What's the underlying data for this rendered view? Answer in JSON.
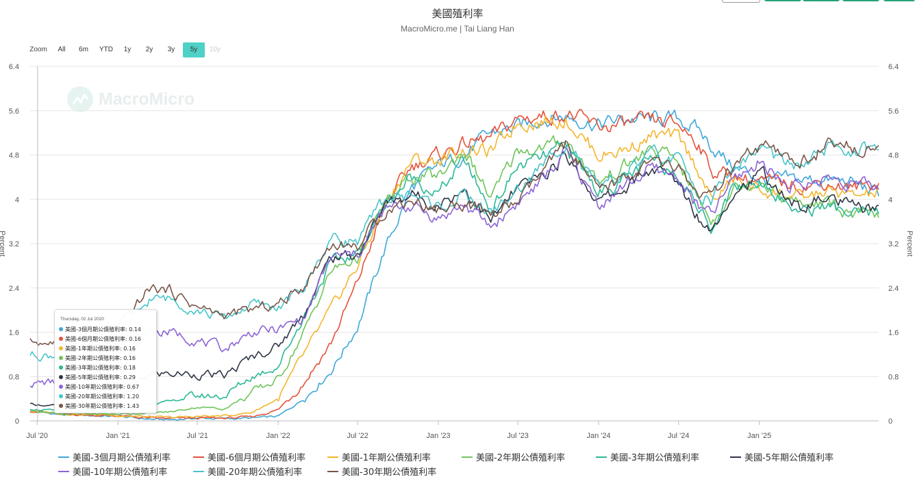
{
  "title": "美國殖利率",
  "subtitle": "MacroMicro.me | Tai Liang Han",
  "watermark": "MacroMicro",
  "range_selector": {
    "zoom_label": "Zoom",
    "buttons": [
      "All",
      "6m",
      "YTD",
      "1y",
      "2y",
      "3y",
      "5y",
      "10y"
    ],
    "active": "5y",
    "disabled": [
      "10y"
    ]
  },
  "colors": {
    "3m": "#3ea7d8",
    "6m": "#e4513a",
    "1y": "#f3b52c",
    "2y": "#6ec45a",
    "3y": "#2bb895",
    "5y": "#2f3546",
    "10y": "#8b63d6",
    "20y": "#48c4c9",
    "30y": "#7a5548"
  },
  "tooltip": {
    "date": "Thursday, 02 Jul 2020",
    "rows": [
      {
        "key": "3m",
        "text": "美國-3個月期公債殖利率: 0.14"
      },
      {
        "key": "6m",
        "text": "美國-6個月期公債殖利率: 0.16"
      },
      {
        "key": "1y",
        "text": "美國-1年期公債殖利率: 0.16"
      },
      {
        "key": "2y",
        "text": "美國-2年期公債殖利率: 0.16"
      },
      {
        "key": "3y",
        "text": "美國-3年期公債殖利率: 0.18"
      },
      {
        "key": "5y",
        "text": "美國-5年期公債殖利率: 0.29"
      },
      {
        "key": "10y",
        "text": "美國-10年期公債殖利率: 0.67"
      },
      {
        "key": "20y",
        "text": "美國-20年期公債殖利率: 1.20"
      },
      {
        "key": "30y",
        "text": "美國-30年期公債殖利率: 1.43"
      }
    ]
  },
  "chart_data": {
    "type": "line",
    "title": "美國殖利率",
    "subtitle": "MacroMicro.me | Tai Liang Han",
    "ylabel_left": "Percent",
    "ylabel_right": "Percent",
    "ylim": [
      0,
      6.4
    ],
    "yticks": [
      "0",
      "0.8",
      "1.6",
      "2.4",
      "3.2",
      "4",
      "4.8",
      "5.6",
      "6.4"
    ],
    "xlim": [
      "2020-06-15",
      "2025-09-30"
    ],
    "xticks": [
      {
        "date": "2020-07-01",
        "label": "Jul '20"
      },
      {
        "date": "2021-01-01",
        "label": "Jan '21"
      },
      {
        "date": "2021-07-01",
        "label": "Jul '21"
      },
      {
        "date": "2022-01-01",
        "label": "Jan '22"
      },
      {
        "date": "2022-07-01",
        "label": "Jul '22"
      },
      {
        "date": "2023-01-01",
        "label": "Jan '23"
      },
      {
        "date": "2023-07-01",
        "label": "Jul '23"
      },
      {
        "date": "2024-01-01",
        "label": "Jan '24"
      },
      {
        "date": "2024-07-01",
        "label": "Jul '24"
      },
      {
        "date": "2025-01-01",
        "label": "Jan '25"
      }
    ],
    "crosshair_date": "2020-07-02",
    "grid": true,
    "legend_position": "bottom",
    "x": [
      "2020-06-15",
      "2020-09-01",
      "2021-01-01",
      "2021-03-15",
      "2021-05-01",
      "2021-07-01",
      "2021-09-01",
      "2021-11-01",
      "2022-01-01",
      "2022-03-01",
      "2022-05-01",
      "2022-07-01",
      "2022-09-01",
      "2022-11-01",
      "2023-01-01",
      "2023-03-01",
      "2023-05-01",
      "2023-07-01",
      "2023-08-15",
      "2023-10-20",
      "2024-01-01",
      "2024-03-01",
      "2024-05-01",
      "2024-07-01",
      "2024-08-15",
      "2024-09-15",
      "2024-11-01",
      "2025-01-10",
      "2025-03-01",
      "2025-04-10",
      "2025-06-01",
      "2025-08-01",
      "2025-09-30"
    ],
    "series": [
      {
        "key": "3m",
        "name": "美國-3個月期公債殖利率",
        "values": [
          0.17,
          0.11,
          0.08,
          0.03,
          0.02,
          0.05,
          0.04,
          0.05,
          0.08,
          0.4,
          0.9,
          1.7,
          3.1,
          4.2,
          4.6,
          4.8,
          5.2,
          5.3,
          5.45,
          5.5,
          5.35,
          5.45,
          5.45,
          5.45,
          5.25,
          4.95,
          4.6,
          4.35,
          4.35,
          4.35,
          4.35,
          4.3,
          4.1
        ]
      },
      {
        "key": "6m",
        "name": "美國-6個月期公債殖利率",
        "values": [
          0.18,
          0.12,
          0.09,
          0.05,
          0.04,
          0.05,
          0.05,
          0.07,
          0.2,
          0.7,
          1.4,
          2.5,
          3.9,
          4.6,
          4.8,
          5.0,
          5.1,
          5.45,
          5.5,
          5.55,
          5.3,
          5.35,
          5.4,
          5.35,
          5.05,
          4.5,
          4.45,
          4.3,
          4.3,
          4.25,
          4.3,
          4.2,
          4.3
        ]
      },
      {
        "key": "1y",
        "name": "美國-1年期公債殖利率",
        "values": [
          0.18,
          0.13,
          0.1,
          0.07,
          0.06,
          0.08,
          0.09,
          0.15,
          0.4,
          1.2,
          2.0,
          2.8,
          3.9,
          4.7,
          4.7,
          4.9,
          4.85,
          5.4,
          5.4,
          5.45,
          4.8,
          4.9,
          5.15,
          5.1,
          4.55,
          3.95,
          4.35,
          4.15,
          4.1,
          4.0,
          4.15,
          4.05,
          4.1
        ]
      },
      {
        "key": "2y",
        "name": "美國-2年期公債殖利率",
        "values": [
          0.19,
          0.13,
          0.12,
          0.15,
          0.16,
          0.25,
          0.22,
          0.5,
          0.75,
          1.6,
          2.7,
          2.95,
          3.9,
          4.4,
          4.4,
          4.9,
          4.0,
          4.9,
          4.9,
          5.05,
          4.3,
          4.6,
          4.9,
          4.7,
          4.0,
          3.6,
          4.2,
          4.35,
          4.0,
          3.9,
          3.95,
          3.7,
          3.7
        ]
      },
      {
        "key": "3y",
        "name": "美國-3年期公債殖利率",
        "values": [
          0.22,
          0.16,
          0.17,
          0.32,
          0.35,
          0.45,
          0.45,
          0.8,
          1.0,
          1.9,
          2.85,
          3.0,
          3.9,
          4.4,
          4.1,
          4.7,
          3.8,
          4.6,
          4.7,
          4.95,
          4.15,
          4.35,
          4.7,
          4.5,
          3.85,
          3.5,
          4.2,
          4.35,
          3.95,
          3.75,
          3.9,
          3.7,
          3.75
        ]
      },
      {
        "key": "5y",
        "name": "美國-5年期公債殖利率",
        "values": [
          0.3,
          0.27,
          0.37,
          0.85,
          0.85,
          0.85,
          0.8,
          1.15,
          1.35,
          1.95,
          2.95,
          3.0,
          3.9,
          4.1,
          3.9,
          4.2,
          3.6,
          4.2,
          4.35,
          4.8,
          3.95,
          4.2,
          4.55,
          4.3,
          3.7,
          3.45,
          4.15,
          4.45,
          4.0,
          3.85,
          4.05,
          3.85,
          3.8
        ]
      },
      {
        "key": "10y",
        "name": "美國-10年期公債殖利率",
        "values": [
          0.68,
          0.7,
          0.95,
          1.62,
          1.6,
          1.45,
          1.3,
          1.6,
          1.65,
          1.85,
          2.95,
          3.0,
          3.8,
          3.9,
          3.65,
          3.9,
          3.5,
          3.95,
          4.25,
          4.85,
          3.9,
          4.25,
          4.55,
          4.4,
          3.85,
          3.7,
          4.35,
          4.7,
          4.25,
          4.2,
          4.4,
          4.3,
          4.2
        ]
      },
      {
        "key": "20y",
        "name": "美國-20年期公債殖利率",
        "values": [
          1.2,
          1.17,
          1.45,
          2.2,
          2.2,
          2.0,
          1.85,
          2.1,
          2.05,
          2.4,
          3.3,
          3.25,
          4.0,
          4.1,
          3.85,
          4.05,
          3.75,
          4.15,
          4.5,
          5.1,
          4.15,
          4.5,
          4.8,
          4.7,
          4.15,
          4.0,
          4.55,
          4.95,
          4.6,
          4.6,
          4.9,
          4.9,
          4.85
        ]
      },
      {
        "key": "30y",
        "name": "美國-30年期公債殖利率",
        "values": [
          1.43,
          1.4,
          1.65,
          2.4,
          2.35,
          2.05,
          1.9,
          2.0,
          2.1,
          2.45,
          3.2,
          3.15,
          3.8,
          4.0,
          3.8,
          3.95,
          3.7,
          3.95,
          4.35,
          5.0,
          4.1,
          4.4,
          4.65,
          4.55,
          4.1,
          4.0,
          4.55,
          4.95,
          4.7,
          4.7,
          4.95,
          4.95,
          5.0
        ]
      }
    ]
  },
  "legend_items": [
    {
      "key": "3m",
      "label": "美國-3個月期公債殖利率"
    },
    {
      "key": "6m",
      "label": "美國-6個月期公債殖利率"
    },
    {
      "key": "1y",
      "label": "美國-1年期公債殖利率"
    },
    {
      "key": "2y",
      "label": "美國-2年期公債殖利率"
    },
    {
      "key": "3y",
      "label": "美國-3年期公債殖利率"
    },
    {
      "key": "5y",
      "label": "美國-5年期公債殖利率"
    },
    {
      "key": "10y",
      "label": "美國-10年期公債殖利率"
    },
    {
      "key": "20y",
      "label": "美國-20年期公債殖利率"
    },
    {
      "key": "30y",
      "label": "美國-30年期公債殖利率"
    }
  ]
}
